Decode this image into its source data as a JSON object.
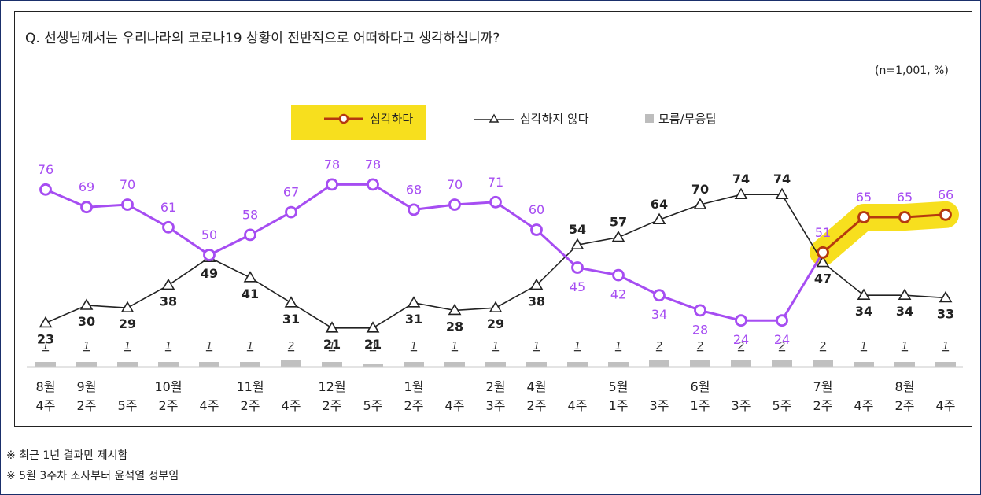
{
  "question": "Q. 선생님께서는 우리나라의 코로나19 상황이 전반적으로 어떠하다고 생각하십니까?",
  "sample_note": "(n=1,001,  %)",
  "notes": [
    "※ 최근 1년 결과만 제시함",
    "※ 5월 3주차 조사부터 윤석열 정부임"
  ],
  "colors": {
    "serious": "#a64df2",
    "serious_latest": "#b5390f",
    "not_serious": "#222222",
    "unknown": "#c0c0c0",
    "highlight": "#f7df1e"
  },
  "chart_data": {
    "type": "line",
    "categories": [
      [
        "8월",
        "4주"
      ],
      [
        "9월",
        "2주"
      ],
      [
        "",
        "5주"
      ],
      [
        "10월",
        "2주"
      ],
      [
        "",
        "4주"
      ],
      [
        "11월",
        "2주"
      ],
      [
        "",
        "4주"
      ],
      [
        "12월",
        "2주"
      ],
      [
        "",
        "5주"
      ],
      [
        "1월",
        "2주"
      ],
      [
        "",
        "4주"
      ],
      [
        "2월",
        "3주"
      ],
      [
        "4월",
        "2주"
      ],
      [
        "",
        "4주"
      ],
      [
        "5월",
        "1주"
      ],
      [
        "",
        "3주"
      ],
      [
        "6월",
        "1주"
      ],
      [
        "",
        "3주"
      ],
      [
        "",
        "5주"
      ],
      [
        "7월",
        "2주"
      ],
      [
        "",
        "4주"
      ],
      [
        "8월",
        "2주"
      ],
      [
        "",
        "4주"
      ]
    ],
    "legend": [
      "심각하다",
      "심각하지 않다",
      "모름/무응답"
    ],
    "series": [
      {
        "name": "심각하다",
        "values": [
          76,
          69,
          70,
          61,
          50,
          58,
          67,
          78,
          78,
          68,
          70,
          71,
          60,
          45,
          42,
          34,
          28,
          24,
          24,
          51,
          65,
          65,
          66
        ]
      },
      {
        "name": "심각하지 않다",
        "values": [
          23,
          30,
          29,
          38,
          49,
          41,
          31,
          21,
          21,
          31,
          28,
          29,
          38,
          54,
          57,
          64,
          70,
          74,
          74,
          47,
          34,
          34,
          33
        ]
      },
      {
        "name": "모름/무응답",
        "values": [
          1,
          1,
          1,
          1,
          1,
          1,
          2,
          1,
          0,
          1,
          1,
          1,
          1,
          1,
          1,
          2,
          2,
          2,
          2,
          2,
          1,
          1,
          1
        ]
      }
    ]
  }
}
